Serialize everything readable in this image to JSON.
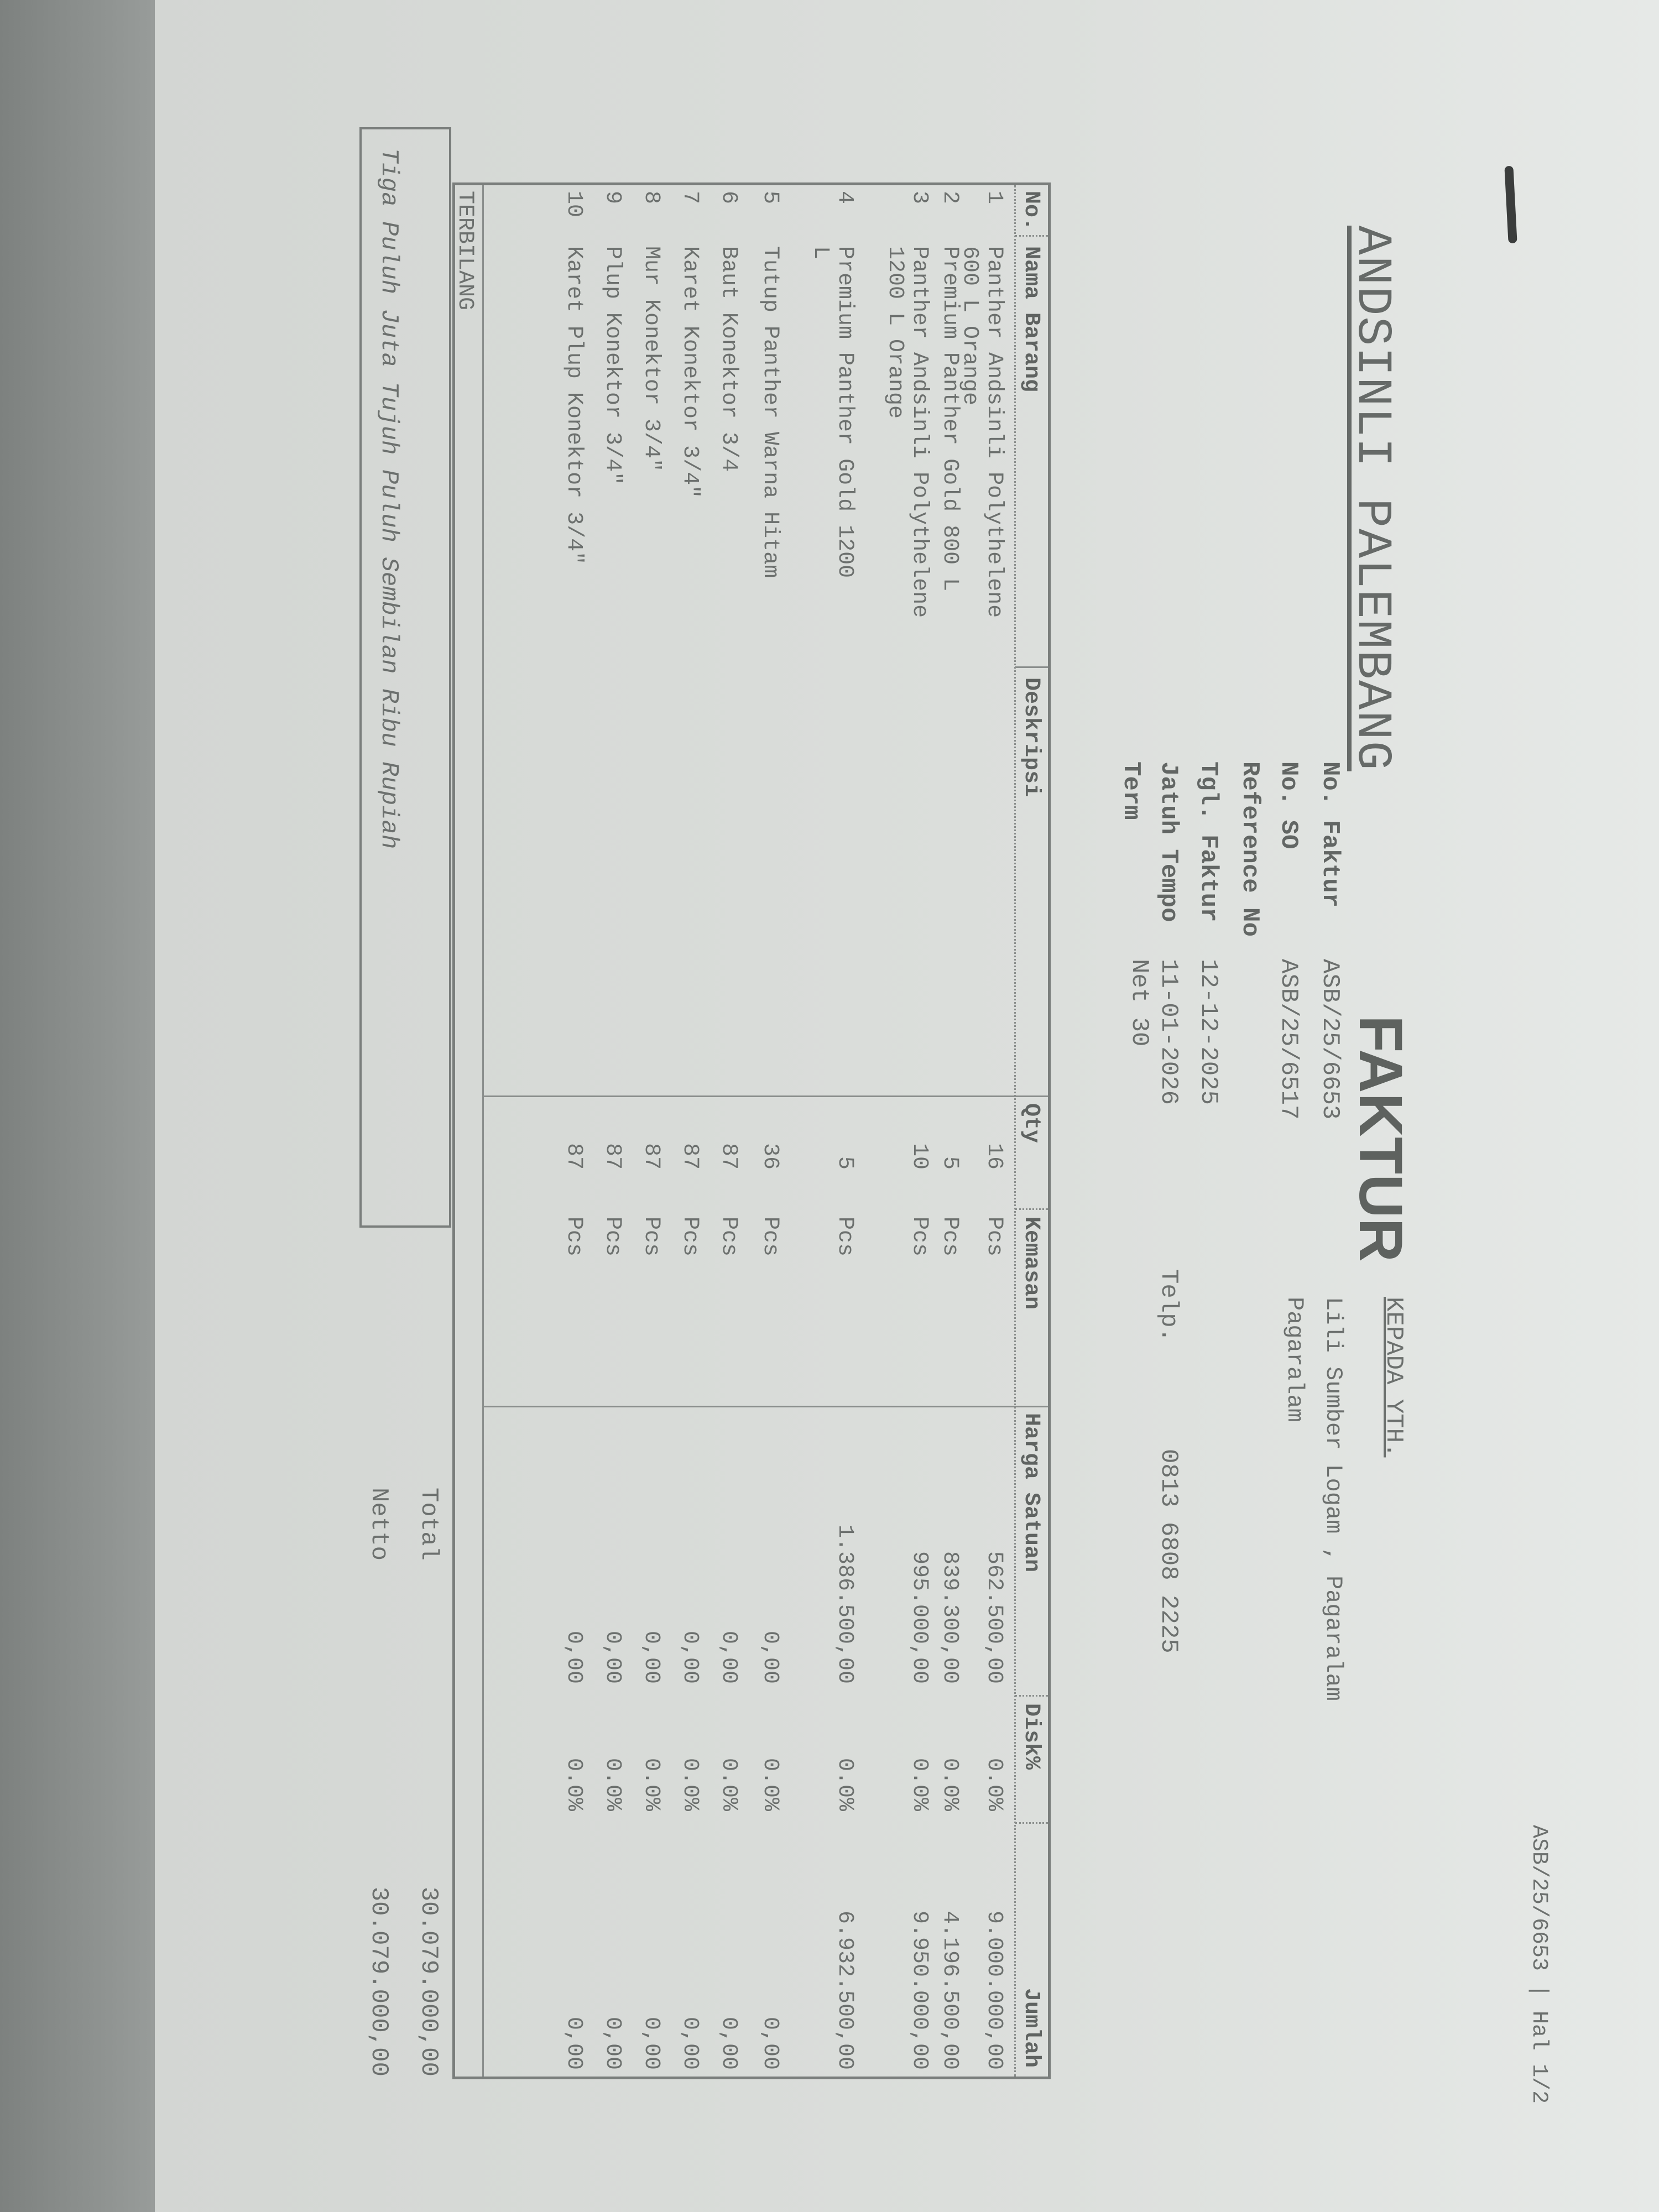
{
  "header": {
    "company": "ANDSINLI PALEMBANG",
    "title": "FAKTUR",
    "recipient_label": "KEPADA YTH.",
    "recipient_name": "Lili Sumber Logam , Pagaralam",
    "recipient_city": "Pagaralam",
    "telp_label": "Telp.",
    "telp_value": "0813 6808 2225"
  },
  "info": [
    {
      "label": "No. Faktur",
      "value": "ASB/25/6653"
    },
    {
      "label": "No. SO",
      "value": "ASB/25/6517"
    },
    {
      "label": "Reference No",
      "value": ""
    },
    {
      "label": "Tgl. Faktur",
      "value": "12-12-2025"
    },
    {
      "label": "Jatuh Tempo",
      "value": "11-01-2026"
    },
    {
      "label": "Term",
      "value": "Net 30"
    }
  ],
  "table": {
    "columns": {
      "no": "No.",
      "name": "Nama Barang",
      "desc": "Deskripsi",
      "qty": "Qty",
      "unit": "Kemasan",
      "price": "Harga Satuan",
      "disc": "Disk%",
      "amount": "Jumlah"
    },
    "rows": [
      {
        "no": "1",
        "name": [
          "Panther Andsinli Polythelene",
          "600 L Orange"
        ],
        "qty": "16",
        "unit": "Pcs",
        "price": "562.500,00",
        "disc": "0.0%",
        "amount": "9.000.000,00"
      },
      {
        "no": "2",
        "name": [
          "Premium Panther Gold 800 L"
        ],
        "qty": "5",
        "unit": "Pcs",
        "price": "839.300,00",
        "disc": "0.0%",
        "amount": "4.196.500,00"
      },
      {
        "no": "3",
        "name": [
          "Panther Andsinli Polythelene",
          "1200 L Orange"
        ],
        "qty": "10",
        "unit": "Pcs",
        "price": "995.000,00",
        "disc": "0.0%",
        "amount": "9.950.000,00"
      },
      {
        "no": "4",
        "name": [
          "Premium Panther Gold 1200",
          "L"
        ],
        "qty": "5",
        "unit": "Pcs",
        "price": "1.386.500,00",
        "disc": "0.0%",
        "amount": "6.932.500,00"
      },
      {
        "no": "5",
        "name": [
          "Tutup Panther Warna Hitam"
        ],
        "qty": "36",
        "unit": "Pcs",
        "price": "0,00",
        "disc": "0.0%",
        "amount": "0,00"
      },
      {
        "no": "6",
        "name": [
          "Baut Konektor 3/4"
        ],
        "qty": "87",
        "unit": "Pcs",
        "price": "0,00",
        "disc": "0.0%",
        "amount": "0,00"
      },
      {
        "no": "7",
        "name": [
          "Karet Konektor 3/4\""
        ],
        "qty": "87",
        "unit": "Pcs",
        "price": "0,00",
        "disc": "0.0%",
        "amount": "0,00"
      },
      {
        "no": "8",
        "name": [
          "Mur Konektor 3/4\""
        ],
        "qty": "87",
        "unit": "Pcs",
        "price": "0,00",
        "disc": "0.0%",
        "amount": "0,00"
      },
      {
        "no": "9",
        "name": [
          "Plup Konektor 3/4\""
        ],
        "qty": "87",
        "unit": "Pcs",
        "price": "0,00",
        "disc": "0.0%",
        "amount": "0,00"
      },
      {
        "no": "10",
        "name": [
          "Karet Plup Konektor 3/4\""
        ],
        "qty": "87",
        "unit": "Pcs",
        "price": "0,00",
        "disc": "0.0%",
        "amount": "0,00"
      }
    ],
    "terbilang_label": "TERBILANG"
  },
  "terbilang_text": "Tiga Puluh Juta Tujuh Puluh Sembilan Ribu Rupiah",
  "totals": {
    "total_label": "Total",
    "total_value": "30.079.000,00",
    "netto_label": "Netto",
    "netto_value": "30.079.000,00"
  },
  "footer": {
    "ref": "ASB/25/6653 | Hal 1/2"
  }
}
